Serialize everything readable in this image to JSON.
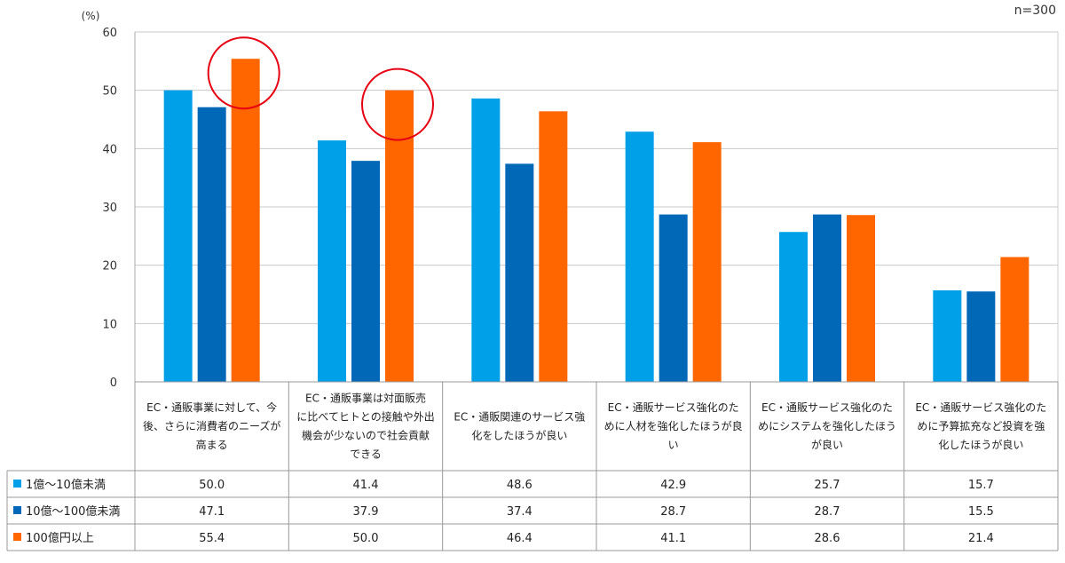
{
  "chart_data": {
    "type": "bar",
    "unit_label": "(%)",
    "sample_label": "n=300",
    "ylim": [
      0,
      60
    ],
    "yticks": [
      0,
      10,
      20,
      30,
      40,
      50,
      60
    ],
    "grid": true,
    "legend_placement": "table-left",
    "categories": [
      [
        "EC・通販事業に対して、今",
        "後、さらに消費者のニーズが",
        "高まる"
      ],
      [
        "EC・通販事業は対面販売",
        "に比べてヒトとの接触や外出",
        "機会が少ないので社会貢献",
        "できる"
      ],
      [
        "EC・通販関連のサービス強",
        "化をしたほうが良い"
      ],
      [
        "EC・通販サービス強化のた",
        "めに人材を強化したほうが良",
        "い"
      ],
      [
        "EC・通販サービス強化のた",
        "めにシステムを強化したほう",
        "が良い"
      ],
      [
        "EC・通販サービス強化のた",
        "めに予算拡充など投資を強",
        "化したほうが良い"
      ]
    ],
    "series": [
      {
        "name": "1億～10億未満",
        "color": "#00A0E9",
        "values": [
          50.0,
          41.4,
          48.6,
          42.9,
          25.7,
          15.7
        ],
        "labels": [
          "50.0",
          "41.4",
          "48.6",
          "42.9",
          "25.7",
          "15.7"
        ]
      },
      {
        "name": "10億～100億未満",
        "color": "#0068B7",
        "values": [
          47.1,
          37.9,
          37.4,
          28.7,
          28.7,
          15.5
        ],
        "labels": [
          "47.1",
          "37.9",
          "37.4",
          "28.7",
          "28.7",
          "15.5"
        ]
      },
      {
        "name": "100億円以上",
        "color": "#FF6600",
        "values": [
          55.4,
          50.0,
          46.4,
          41.1,
          28.6,
          21.4
        ],
        "labels": [
          "55.4",
          "50.0",
          "46.4",
          "41.1",
          "28.6",
          "21.4"
        ]
      }
    ],
    "highlights": [
      {
        "category_index": 0,
        "series_index": 2,
        "color": "#E60012"
      },
      {
        "category_index": 1,
        "series_index": 2,
        "color": "#E60012"
      }
    ]
  }
}
